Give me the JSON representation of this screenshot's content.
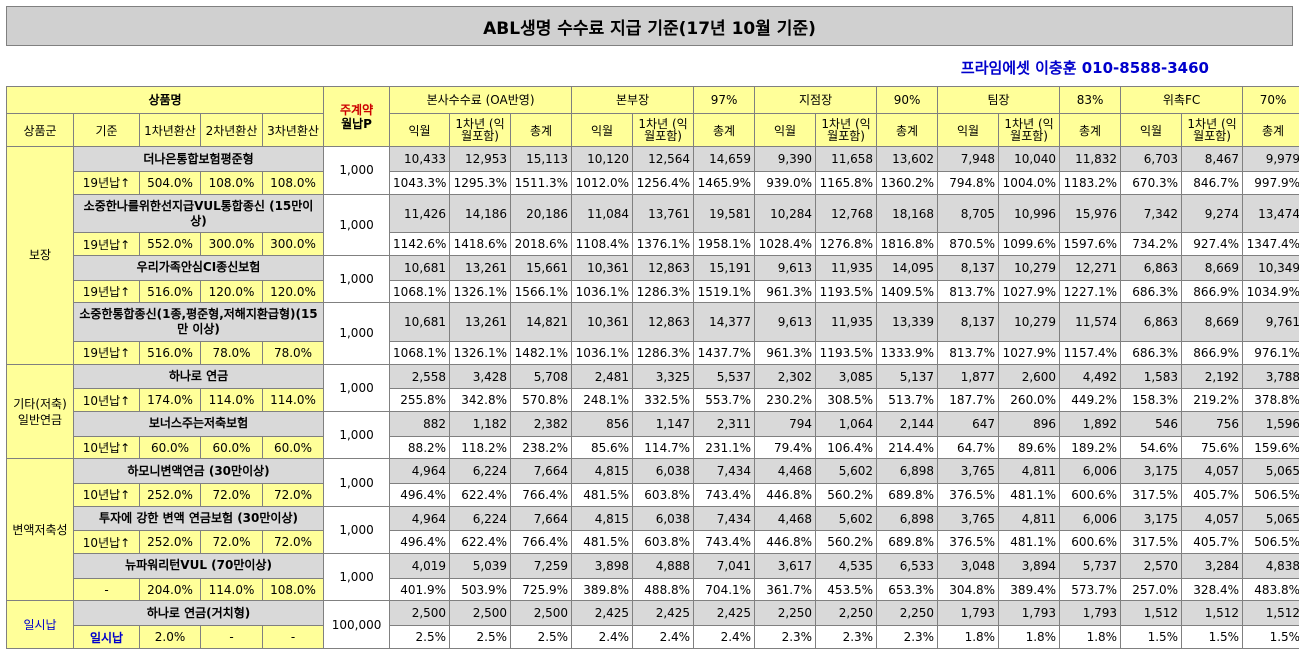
{
  "title": "ABL생명 수수료 지급 기준(17년 10월 기준)",
  "agent_line": "프라임에셋 이충훈 010-8588-3460",
  "headers": {
    "product_name": "상품명",
    "primary_contract": "주계약",
    "monthly_premium": "월납P",
    "hq_fee": "본사수수료 (OA반영)",
    "divisions": [
      {
        "name": "본부장",
        "rate": "97%"
      },
      {
        "name": "지점장",
        "rate": "90%"
      },
      {
        "name": "팀장",
        "rate": "83%"
      },
      {
        "name": "위촉FC",
        "rate": "70%"
      }
    ],
    "group": "상품군",
    "base": "기준",
    "conv1": "1차년환산",
    "conv2": "2차년환산",
    "conv3": "3차년환산",
    "sub1": "익월",
    "sub2": "1차년 (익월포함)",
    "sub3": "총계"
  },
  "groups": [
    {
      "label": "보장",
      "blue": false,
      "products": [
        {
          "name": "더나은통합보험평준형",
          "base": "19년납↑",
          "conv": [
            "504.0%",
            "108.0%",
            "108.0%"
          ],
          "premium": "1,000",
          "values": [
            "10,433",
            "12,953",
            "15,113",
            "10,120",
            "12,564",
            "14,659",
            "9,390",
            "11,658",
            "13,602",
            "7,948",
            "10,040",
            "11,832",
            "6,703",
            "8,467",
            "9,979"
          ],
          "rates": [
            "1043.3%",
            "1295.3%",
            "1511.3%",
            "1012.0%",
            "1256.4%",
            "1465.9%",
            "939.0%",
            "1165.8%",
            "1360.2%",
            "794.8%",
            "1004.0%",
            "1183.2%",
            "670.3%",
            "846.7%",
            "997.9%"
          ]
        },
        {
          "name": "소중한나를위한선지급VUL통합종신 (15만이상)",
          "tall": true,
          "base": "19년납↑",
          "conv": [
            "552.0%",
            "300.0%",
            "300.0%"
          ],
          "premium": "1,000",
          "values": [
            "11,426",
            "14,186",
            "20,186",
            "11,084",
            "13,761",
            "19,581",
            "10,284",
            "12,768",
            "18,168",
            "8,705",
            "10,996",
            "15,976",
            "7,342",
            "9,274",
            "13,474"
          ],
          "rates": [
            "1142.6%",
            "1418.6%",
            "2018.6%",
            "1108.4%",
            "1376.1%",
            "1958.1%",
            "1028.4%",
            "1276.8%",
            "1816.8%",
            "870.5%",
            "1099.6%",
            "1597.6%",
            "734.2%",
            "927.4%",
            "1347.4%"
          ]
        },
        {
          "name": "우리가족안심CI종신보험",
          "base": "19년납↑",
          "conv": [
            "516.0%",
            "120.0%",
            "120.0%"
          ],
          "premium": "1,000",
          "values": [
            "10,681",
            "13,261",
            "15,661",
            "10,361",
            "12,863",
            "15,191",
            "9,613",
            "11,935",
            "14,095",
            "8,137",
            "10,279",
            "12,271",
            "6,863",
            "8,669",
            "10,349"
          ],
          "rates": [
            "1068.1%",
            "1326.1%",
            "1566.1%",
            "1036.1%",
            "1286.3%",
            "1519.1%",
            "961.3%",
            "1193.5%",
            "1409.5%",
            "813.7%",
            "1027.9%",
            "1227.1%",
            "686.3%",
            "866.9%",
            "1034.9%"
          ]
        },
        {
          "name": "소중한통합종신(1종,평준형,저해지환급형)(15만 이상)",
          "tall": true,
          "base": "19년납↑",
          "conv": [
            "516.0%",
            "78.0%",
            "78.0%"
          ],
          "premium": "1,000",
          "values": [
            "10,681",
            "13,261",
            "14,821",
            "10,361",
            "12,863",
            "14,377",
            "9,613",
            "11,935",
            "13,339",
            "8,137",
            "10,279",
            "11,574",
            "6,863",
            "8,669",
            "9,761"
          ],
          "rates": [
            "1068.1%",
            "1326.1%",
            "1482.1%",
            "1036.1%",
            "1286.3%",
            "1437.7%",
            "961.3%",
            "1193.5%",
            "1333.9%",
            "813.7%",
            "1027.9%",
            "1157.4%",
            "686.3%",
            "866.9%",
            "976.1%"
          ]
        }
      ]
    },
    {
      "label": "기타(저축) 일반연금",
      "blue": false,
      "products": [
        {
          "name": "하나로 연금",
          "base": "10년납↑",
          "conv": [
            "174.0%",
            "114.0%",
            "114.0%"
          ],
          "premium": "1,000",
          "values": [
            "2,558",
            "3,428",
            "5,708",
            "2,481",
            "3,325",
            "5,537",
            "2,302",
            "3,085",
            "5,137",
            "1,877",
            "2,600",
            "4,492",
            "1,583",
            "2,192",
            "3,788"
          ],
          "rates": [
            "255.8%",
            "342.8%",
            "570.8%",
            "248.1%",
            "332.5%",
            "553.7%",
            "230.2%",
            "308.5%",
            "513.7%",
            "187.7%",
            "260.0%",
            "449.2%",
            "158.3%",
            "219.2%",
            "378.8%"
          ]
        },
        {
          "name": "보너스주는저축보험",
          "base": "10년납↑",
          "conv": [
            "60.0%",
            "60.0%",
            "60.0%"
          ],
          "premium": "1,000",
          "values": [
            "882",
            "1,182",
            "2,382",
            "856",
            "1,147",
            "2,311",
            "794",
            "1,064",
            "2,144",
            "647",
            "896",
            "1,892",
            "546",
            "756",
            "1,596"
          ],
          "rates": [
            "88.2%",
            "118.2%",
            "238.2%",
            "85.6%",
            "114.7%",
            "231.1%",
            "79.4%",
            "106.4%",
            "214.4%",
            "64.7%",
            "89.6%",
            "189.2%",
            "54.6%",
            "75.6%",
            "159.6%"
          ]
        }
      ]
    },
    {
      "label": "변액저축성",
      "blue": false,
      "products": [
        {
          "name": "하모니변액연금 (30만이상)",
          "base": "10년납↑",
          "conv": [
            "252.0%",
            "72.0%",
            "72.0%"
          ],
          "premium": "1,000",
          "values": [
            "4,964",
            "6,224",
            "7,664",
            "4,815",
            "6,038",
            "7,434",
            "4,468",
            "5,602",
            "6,898",
            "3,765",
            "4,811",
            "6,006",
            "3,175",
            "4,057",
            "5,065"
          ],
          "rates": [
            "496.4%",
            "622.4%",
            "766.4%",
            "481.5%",
            "603.8%",
            "743.4%",
            "446.8%",
            "560.2%",
            "689.8%",
            "376.5%",
            "481.1%",
            "600.6%",
            "317.5%",
            "405.7%",
            "506.5%"
          ]
        },
        {
          "name": "투자에 강한 변액 연금보험 (30만이상)",
          "base": "10년납↑",
          "conv": [
            "252.0%",
            "72.0%",
            "72.0%"
          ],
          "premium": "1,000",
          "values": [
            "4,964",
            "6,224",
            "7,664",
            "4,815",
            "6,038",
            "7,434",
            "4,468",
            "5,602",
            "6,898",
            "3,765",
            "4,811",
            "6,006",
            "3,175",
            "4,057",
            "5,065"
          ],
          "rates": [
            "496.4%",
            "622.4%",
            "766.4%",
            "481.5%",
            "603.8%",
            "743.4%",
            "446.8%",
            "560.2%",
            "689.8%",
            "376.5%",
            "481.1%",
            "600.6%",
            "317.5%",
            "405.7%",
            "506.5%"
          ]
        },
        {
          "name": "뉴파워리턴VUL (70만이상)",
          "base": "-",
          "conv": [
            "204.0%",
            "114.0%",
            "108.0%"
          ],
          "premium": "1,000",
          "values": [
            "4,019",
            "5,039",
            "7,259",
            "3,898",
            "4,888",
            "7,041",
            "3,617",
            "4,535",
            "6,533",
            "3,048",
            "3,894",
            "5,737",
            "2,570",
            "3,284",
            "4,838"
          ],
          "rates": [
            "401.9%",
            "503.9%",
            "725.9%",
            "389.8%",
            "488.8%",
            "704.1%",
            "361.7%",
            "453.5%",
            "653.3%",
            "304.8%",
            "389.4%",
            "573.7%",
            "257.0%",
            "328.4%",
            "483.8%"
          ]
        }
      ]
    },
    {
      "label": "일시납",
      "blue": true,
      "products": [
        {
          "name": "하나로 연금(거치형)",
          "base": "일시납",
          "baseBlue": true,
          "conv": [
            "2.0%",
            "-",
            "-"
          ],
          "premium": "100,000",
          "values": [
            "2,500",
            "2,500",
            "2,500",
            "2,425",
            "2,425",
            "2,425",
            "2,250",
            "2,250",
            "2,250",
            "1,793",
            "1,793",
            "1,793",
            "1,512",
            "1,512",
            "1,512"
          ],
          "rates": [
            "2.5%",
            "2.5%",
            "2.5%",
            "2.4%",
            "2.4%",
            "2.4%",
            "2.3%",
            "2.3%",
            "2.3%",
            "1.8%",
            "1.8%",
            "1.8%",
            "1.5%",
            "1.5%",
            "1.5%"
          ]
        }
      ]
    }
  ]
}
